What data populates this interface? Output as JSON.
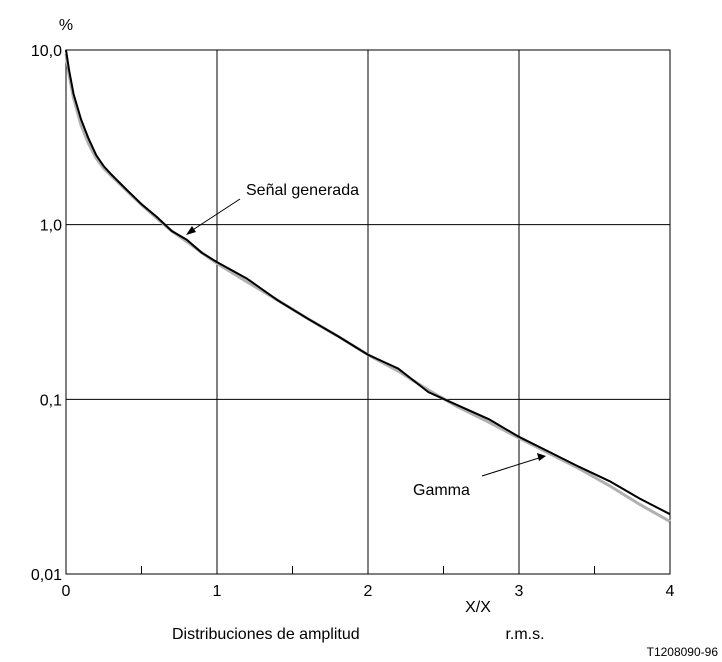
{
  "chart_data": {
    "type": "line",
    "y_label": "%",
    "x_label": "X/X",
    "x_label_subscript": "r.m.s.",
    "caption": "Distribuciones de amplitud",
    "code": "T1208090-96",
    "log_y": true,
    "grid": true,
    "xlim": [
      0,
      4
    ],
    "ylim": [
      0.01,
      10
    ],
    "xticks": [
      0,
      1,
      2,
      3,
      4
    ],
    "xticks_minor": [
      0.5,
      1.5,
      2.5,
      3.5
    ],
    "yticks": [
      {
        "value": 0.01,
        "label": "0,01"
      },
      {
        "value": 0.1,
        "label": "0,1"
      },
      {
        "value": 1,
        "label": "1,0"
      },
      {
        "value": 10,
        "label": "10,0"
      }
    ],
    "x": [
      0,
      0.02,
      0.05,
      0.1,
      0.15,
      0.2,
      0.25,
      0.3,
      0.4,
      0.5,
      0.6,
      0.7,
      0.8,
      0.9,
      1.0,
      1.2,
      1.4,
      1.6,
      1.8,
      2.0,
      2.2,
      2.4,
      2.6,
      2.8,
      3.0,
      3.2,
      3.4,
      3.6,
      3.8,
      4.0
    ],
    "series": [
      {
        "name": "Gamma",
        "color": "#b0b0b0",
        "values": [
          9.5,
          7.2,
          5.3,
          3.7,
          2.9,
          2.4,
          2.1,
          1.9,
          1.57,
          1.3,
          1.09,
          0.92,
          0.8,
          0.69,
          0.6,
          0.47,
          0.37,
          0.29,
          0.23,
          0.18,
          0.145,
          0.113,
          0.09,
          0.074,
          0.06,
          0.049,
          0.04,
          0.032,
          0.025,
          0.02
        ]
      },
      {
        "name": "Señal generada",
        "color": "#000000",
        "values": [
          10,
          7.7,
          5.6,
          4.0,
          3.1,
          2.5,
          2.16,
          1.94,
          1.59,
          1.31,
          1.11,
          0.92,
          0.82,
          0.69,
          0.61,
          0.49,
          0.37,
          0.29,
          0.23,
          0.18,
          0.15,
          0.11,
          0.092,
          0.077,
          0.061,
          0.05,
          0.041,
          0.034,
          0.027,
          0.022
        ]
      }
    ]
  }
}
